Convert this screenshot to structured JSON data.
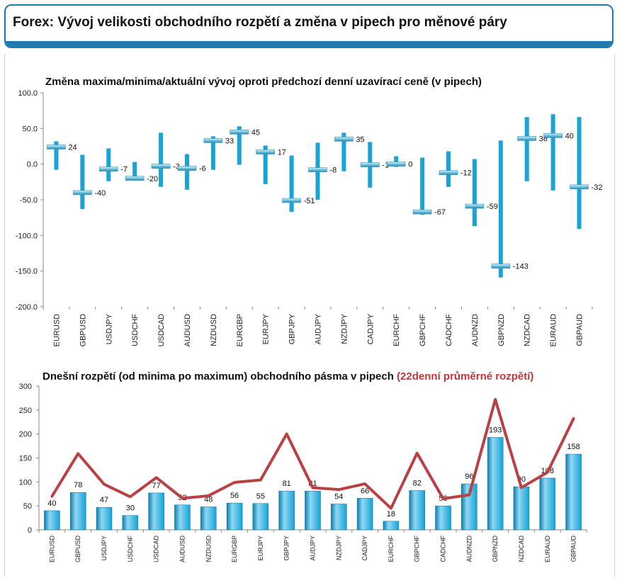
{
  "page": {
    "title": "Forex: Vývoj velikosti obchodního rozpětí a změna v pipech pro měnové páry"
  },
  "chart_data": [
    {
      "type": "stock-hilo",
      "title": "Změna maxima/minima/aktuální vývoj oproti předchozí denní uzavírací ceně (v pipech)",
      "ylim": [
        -200,
        100
      ],
      "yticks": [
        "100.0",
        "50.0",
        "0.0",
        "-50.0",
        "-100.0",
        "-150.0",
        "-200.0"
      ],
      "ytick_values": [
        100,
        50,
        0,
        -50,
        -100,
        -150,
        -200
      ],
      "categories": [
        "EURUSD",
        "GBPUSD",
        "USDJPY",
        "USDCHF",
        "USDCAD",
        "AUDUSD",
        "NZDUSD",
        "EURGBP",
        "EURJPY",
        "GBPJPY",
        "AUDJPY",
        "NZDJPY",
        "CADJPY",
        "EURCHF",
        "GBPCHF",
        "CADCHF",
        "AUDNZD",
        "GBPNZD",
        "NZDCAD",
        "EURAUD",
        "GBPAUD"
      ],
      "high": [
        32,
        13,
        22,
        3,
        44,
        14,
        39,
        53,
        26,
        12,
        30,
        44,
        31,
        11,
        9,
        18,
        7,
        33,
        66,
        70,
        66
      ],
      "low": [
        -8,
        -63,
        -24,
        -23,
        -32,
        -36,
        -8,
        -1,
        -28,
        -67,
        -50,
        -10,
        -33,
        -4,
        -71,
        -32,
        -87,
        -159,
        -24,
        -37,
        -91
      ],
      "current": [
        24,
        -40,
        -7,
        -20,
        -3,
        -6,
        33,
        45,
        17,
        -51,
        -8,
        35,
        -1,
        0,
        -67,
        -12,
        -59,
        -143,
        36,
        40,
        -32
      ],
      "labels": [
        "24",
        "-40",
        "-7",
        "-20",
        "-3",
        "-6",
        "33",
        "45",
        "17",
        "-51",
        "-8",
        "35",
        "-1",
        "0",
        "-67",
        "-12",
        "-59",
        "-143",
        "36",
        "40",
        "-32"
      ],
      "colors": {
        "bar": "#1aa3d5",
        "marker": "#2f8fb5",
        "marker_light": "#d6f0f7"
      }
    },
    {
      "type": "bar+line",
      "title": "Dnešní rozpětí (od minima po maximum) obchodního pásma v pipech",
      "title_extra": "(22denní průměrné rozpětí)",
      "ylim": [
        0,
        300
      ],
      "yticks": [
        "300",
        "250",
        "200",
        "150",
        "100",
        "50",
        "0"
      ],
      "ytick_values": [
        300,
        250,
        200,
        150,
        100,
        50,
        0
      ],
      "categories": [
        "EURUSD",
        "GBPUSD",
        "USDJPY",
        "USDCHF",
        "USDCAD",
        "AUDUSD",
        "NZDUSD",
        "EURGBP",
        "EURJPY",
        "GBPJPY",
        "AUDJPY",
        "NZDJPY",
        "CADJPY",
        "EURCHF",
        "GBPCHF",
        "CADCHF",
        "AUDNZD",
        "GBPNZD",
        "NZDCAD",
        "EURAUD",
        "GBPAUD"
      ],
      "values": [
        40,
        78,
        47,
        30,
        77,
        52,
        48,
        56,
        55,
        81,
        81,
        54,
        66,
        18,
        82,
        50,
        96,
        193,
        90,
        108,
        158
      ],
      "value_labels": [
        "40",
        "78",
        "47",
        "30",
        "77",
        "52",
        "48",
        "56",
        "55",
        "81",
        "81",
        "54",
        "66",
        "18",
        "82",
        "50",
        "96",
        "193",
        "90",
        "108",
        "158"
      ],
      "avg_range": [
        70,
        159,
        95,
        69,
        109,
        66,
        71,
        99,
        104,
        200,
        88,
        84,
        96,
        45,
        160,
        65,
        73,
        272,
        88,
        120,
        232
      ],
      "colors": {
        "bar": "#14a3d8",
        "bar_light": "#8fd8f2",
        "line": "#b94144",
        "extra_title": "#c0373a"
      }
    }
  ]
}
